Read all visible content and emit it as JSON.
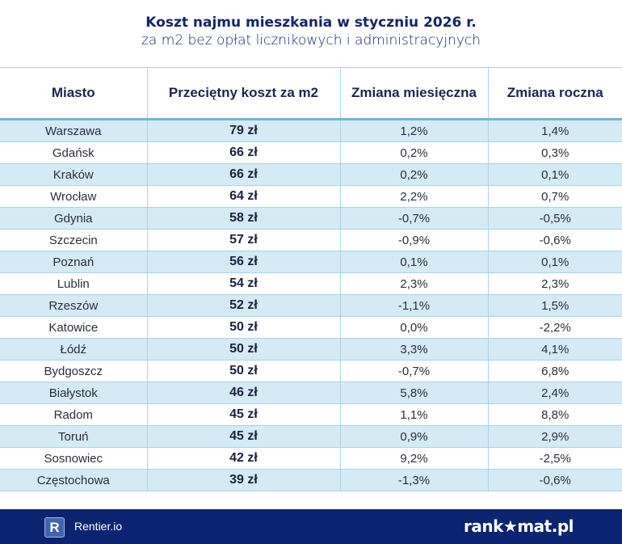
{
  "title": "Koszt najmu mieszkania w styczniu 2026 r.",
  "subtitle": "za m2 bez opłat licznikowych i administracyjnych",
  "columns": [
    "Miasto",
    "Przeciętny koszt za m2",
    "Zmiana miesięczna",
    "Zmiana roczna"
  ],
  "rows": [
    [
      "Warszawa",
      "79 zł",
      "1,2%",
      "1,4%"
    ],
    [
      "Gdańsk",
      "66 zł",
      "0,2%",
      "0,3%"
    ],
    [
      "Kraków",
      "66 zł",
      "0,2%",
      "0,1%"
    ],
    [
      "Wrocław",
      "64 zł",
      "2,2%",
      "0,7%"
    ],
    [
      "Gdynia",
      "58 zł",
      "-0,7%",
      "-0,5%"
    ],
    [
      "Szczecin",
      "57 zł",
      "-0,9%",
      "-0,6%"
    ],
    [
      "Poznań",
      "56 zł",
      "0,1%",
      "0,1%"
    ],
    [
      "Lublin",
      "54 zł",
      "2,3%",
      "2,3%"
    ],
    [
      "Rzeszów",
      "52 zł",
      "-1,1%",
      "1,5%"
    ],
    [
      "Katowice",
      "50 zł",
      "0,0%",
      "-2,2%"
    ],
    [
      "Łódź",
      "50 zł",
      "3,3%",
      "4,1%"
    ],
    [
      "Bydgoszcz",
      "50 zł",
      "-0,7%",
      "6,8%"
    ],
    [
      "Białystok",
      "46 zł",
      "5,8%",
      "2,4%"
    ],
    [
      "Radom",
      "45 zł",
      "1,1%",
      "8,8%"
    ],
    [
      "Toruń",
      "45 zł",
      "0,9%",
      "2,9%"
    ],
    [
      "Sosnowiec",
      "42 zł",
      "9,2%",
      "-2,5%"
    ],
    [
      "Częstochowa",
      "39 zł",
      "-1,3%",
      "-0,6%"
    ]
  ],
  "footer": {
    "left_logo_letter": "R",
    "left_brand": "Rentier.io",
    "right_brand": "rank★mat.pl"
  },
  "colors": {
    "navy": "#0b2472",
    "row_alt": "#d4eaf5",
    "border": "#a9d4e8"
  }
}
